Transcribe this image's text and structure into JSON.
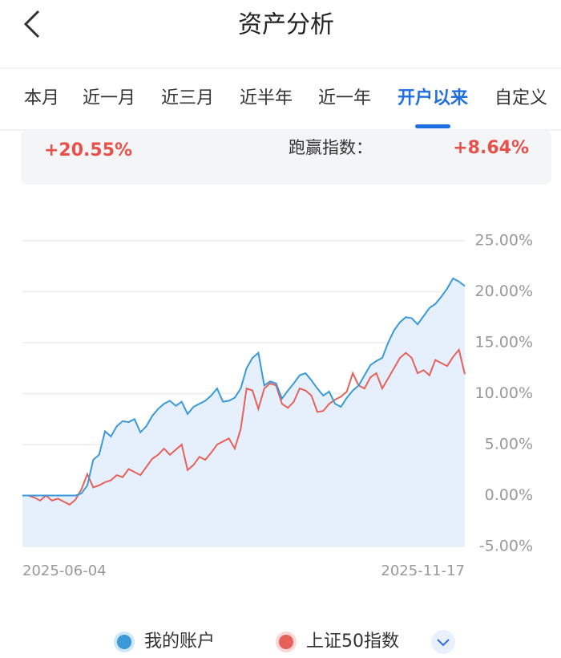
{
  "header": {
    "title": "资产分析"
  },
  "tabs": {
    "items": [
      "本月",
      "近一月",
      "近三月",
      "近半年",
      "近一年",
      "开户以来",
      "自定义"
    ],
    "active": 5
  },
  "summary": {
    "return": "+20.55%",
    "beat_label": "跑赢指数：",
    "beat_value": "+8.64%"
  },
  "chart_data": {
    "type": "line",
    "categories": [
      "2025-06-04",
      null,
      null,
      null,
      null,
      null,
      null,
      null,
      null,
      null,
      null,
      null,
      null,
      null,
      null,
      null,
      null,
      null,
      null,
      null,
      null,
      null,
      null,
      null,
      null,
      null,
      null,
      null,
      null,
      null,
      null,
      null,
      null,
      null,
      null,
      null,
      null,
      null,
      null,
      null,
      null,
      null,
      null,
      null,
      null,
      null,
      null,
      null,
      null,
      null,
      null,
      null,
      null,
      null,
      null,
      null,
      null,
      null,
      null,
      null,
      null,
      null,
      null,
      null,
      null,
      null,
      null,
      null,
      null,
      null,
      null,
      null,
      null,
      null,
      null,
      "2025-11-17"
    ],
    "series": [
      {
        "name": "我的账户",
        "color": "#3a9ad9",
        "values": [
          0,
          0,
          0,
          0,
          0,
          0,
          0,
          0,
          0,
          0,
          0.2,
          1.0,
          3.5,
          4.0,
          6.3,
          5.8,
          6.8,
          7.3,
          7.2,
          7.5,
          6.2,
          6.8,
          7.8,
          8.5,
          9.0,
          9.3,
          8.8,
          9.2,
          8.0,
          8.7,
          9.0,
          9.3,
          9.8,
          10.5,
          9.2,
          9.3,
          9.6,
          10.5,
          12.5,
          13.5,
          14.0,
          10.8,
          11.2,
          11.0,
          9.5,
          10.3,
          11.0,
          11.8,
          12.0,
          11.3,
          10.5,
          9.8,
          10.2,
          9.0,
          8.7,
          9.6,
          10.3,
          10.8,
          11.8,
          12.8,
          13.2,
          13.5,
          15.0,
          16.2,
          17.0,
          17.5,
          17.4,
          16.8,
          17.6,
          18.4,
          18.8,
          19.5,
          20.3,
          21.3,
          21.0,
          20.55
        ]
      },
      {
        "name": "上证50指数",
        "color": "#e8605a",
        "values": [
          0,
          0,
          -0.2,
          -0.5,
          0,
          -0.5,
          -0.3,
          -0.6,
          -0.9,
          -0.4,
          0.6,
          2.1,
          0.8,
          1.0,
          1.3,
          1.5,
          2.0,
          1.8,
          2.6,
          2.3,
          2.0,
          2.8,
          3.6,
          4.0,
          4.6,
          4.0,
          4.5,
          5.0,
          2.5,
          3.0,
          3.8,
          3.5,
          4.2,
          5.0,
          5.3,
          5.6,
          4.6,
          6.5,
          10.5,
          10.3,
          8.5,
          10.5,
          11.0,
          10.8,
          9.0,
          8.6,
          9.2,
          10.5,
          10.3,
          9.8,
          8.2,
          8.3,
          9.0,
          9.4,
          9.7,
          10.2,
          12.0,
          10.8,
          10.5,
          11.6,
          12.0,
          10.5,
          11.5,
          12.5,
          13.5,
          14.0,
          13.5,
          12.0,
          12.3,
          11.8,
          13.3,
          13.0,
          12.7,
          13.6,
          14.3,
          11.9
        ]
      }
    ],
    "area_color": "#e5f0fc",
    "ylim": [
      -5,
      25
    ],
    "yticks": [
      {
        "value": -5,
        "label": "-5.00%"
      },
      {
        "value": 0,
        "label": "0.00%"
      },
      {
        "value": 5,
        "label": "5.00%"
      },
      {
        "value": 10,
        "label": "10.00%"
      },
      {
        "value": 15,
        "label": "15.00%"
      },
      {
        "value": 20,
        "label": "20.00%"
      },
      {
        "value": 25,
        "label": "25.00%"
      }
    ],
    "grid": true
  }
}
